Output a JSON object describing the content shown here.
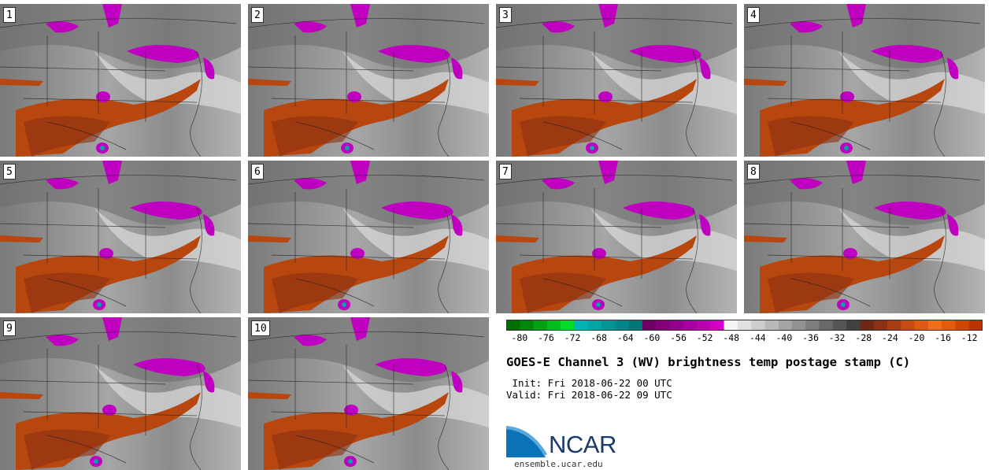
{
  "panels": [
    "1",
    "2",
    "3",
    "4",
    "5",
    "6",
    "7",
    "8",
    "9",
    "10"
  ],
  "colorbar": {
    "colors": [
      "#006e00",
      "#00860a",
      "#00a214",
      "#00be1e",
      "#00dc28",
      "#00b4b4",
      "#00a5a5",
      "#009696",
      "#008787",
      "#007878",
      "#6e0064",
      "#820078",
      "#96008c",
      "#aa00a0",
      "#be00b4",
      "#d200c8",
      "#f5f5f5",
      "#e1e1e1",
      "#cdcdcd",
      "#b9b9b9",
      "#a5a5a5",
      "#919191",
      "#7d7d7d",
      "#696969",
      "#555555",
      "#414141",
      "#6e2814",
      "#8c3214",
      "#aa3c14",
      "#c84b14",
      "#e15a14",
      "#f06e14",
      "#e65a0a",
      "#d24600",
      "#be3200"
    ],
    "ticks": [
      "-80",
      "-76",
      "-72",
      "-68",
      "-64",
      "-60",
      "-56",
      "-52",
      "-48",
      "-44",
      "-40",
      "-36",
      "-32",
      "-28",
      "-24",
      "-20",
      "-16",
      "-12"
    ],
    "min": -82,
    "max": -10
  },
  "title": "GOES-E Channel 3 (WV) brightness temp postage stamp (C)",
  "init": " Init: Fri 2018-06-22 00 UTC",
  "valid": "Valid: Fri 2018-06-22 09 UTC",
  "logo_text": "NCAR",
  "site": "ensemble.ucar.edu",
  "colors": {
    "magenta": "#c000c0",
    "orange": "#b8460f",
    "dark_orange": "#8a3010"
  }
}
